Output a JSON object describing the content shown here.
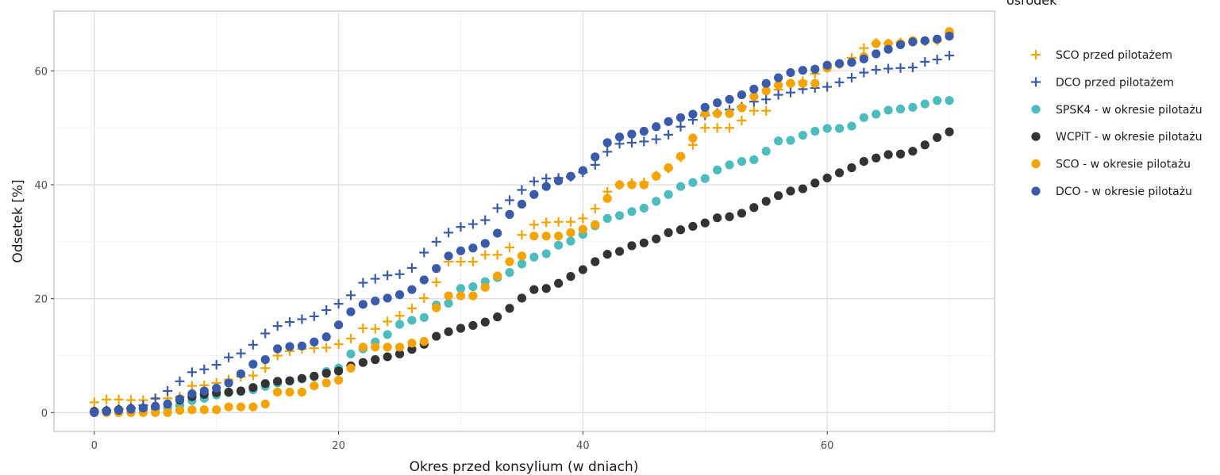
{
  "chart_data": {
    "type": "scatter",
    "title": "",
    "xlabel": "Okres przed konsylium (w dniach)",
    "ylabel": "Odsetek [%]",
    "xlim": [
      -3.3,
      73.7
    ],
    "ylim": [
      -3.3,
      70.5
    ],
    "xticks": [
      0,
      20,
      40,
      60
    ],
    "yticks": [
      0,
      20,
      40,
      60
    ],
    "grid": true,
    "legend": {
      "title": "ośrodek",
      "position": "right"
    },
    "series": [
      {
        "name": "SCO przed pilotażem",
        "marker": "plus",
        "color": "#F5A300",
        "x": [
          0,
          1,
          2,
          3,
          4,
          5,
          6,
          7,
          8,
          9,
          10,
          11,
          12,
          13,
          14,
          15,
          16,
          17,
          18,
          19,
          20,
          21,
          22,
          23,
          24,
          25,
          26,
          27,
          28,
          29,
          30,
          31,
          32,
          33,
          34,
          35,
          36,
          37,
          38,
          39,
          40,
          41,
          42,
          43,
          44,
          45,
          46,
          47,
          48,
          49,
          50,
          51,
          52,
          53,
          54,
          55,
          56,
          57,
          58,
          59,
          60,
          61,
          62,
          63,
          64,
          65,
          66,
          67,
          68,
          69,
          70
        ],
        "y": [
          1.8,
          2.3,
          2.3,
          2.2,
          2.2,
          2.4,
          2.5,
          2.8,
          4.7,
          4.8,
          5.2,
          5.8,
          6.3,
          6.5,
          7.8,
          10.0,
          10.8,
          11.2,
          11.3,
          11.4,
          12.0,
          13.0,
          14.8,
          14.7,
          16.0,
          17.0,
          18.3,
          20.1,
          22.9,
          26.5,
          26.5,
          26.5,
          27.7,
          27.7,
          29.0,
          31.2,
          33.0,
          33.4,
          33.5,
          33.5,
          34.1,
          35.8,
          38.8,
          40.0,
          40.3,
          40.4,
          41.6,
          42.9,
          44.8,
          47.0,
          50.0,
          50.0,
          50.0,
          51.3,
          53.0,
          53.0,
          56.7,
          57.8,
          58.2,
          59.5,
          60.6,
          61.2,
          62.3,
          64.0,
          64.9,
          64.8,
          65.0,
          65.1,
          65.2,
          65.3,
          66.6
        ]
      },
      {
        "name": "DCO przed pilotażem",
        "marker": "plus",
        "color": "#3A5BA9",
        "x": [
          0,
          1,
          2,
          3,
          4,
          5,
          6,
          7,
          8,
          9,
          10,
          11,
          12,
          13,
          14,
          15,
          16,
          17,
          18,
          19,
          20,
          21,
          22,
          23,
          24,
          25,
          26,
          27,
          28,
          29,
          30,
          31,
          32,
          33,
          34,
          35,
          36,
          37,
          38,
          39,
          40,
          41,
          42,
          43,
          44,
          45,
          46,
          47,
          48,
          49,
          50,
          51,
          52,
          53,
          54,
          55,
          56,
          57,
          58,
          59,
          60,
          61,
          62,
          63,
          64,
          65,
          66,
          67,
          68,
          69,
          70
        ],
        "y": [
          0.2,
          0.4,
          0.6,
          0.8,
          1.3,
          2.5,
          3.8,
          5.5,
          7.1,
          7.6,
          8.4,
          9.7,
          10.4,
          11.9,
          13.9,
          15.2,
          15.9,
          16.4,
          16.9,
          18.0,
          19.1,
          20.6,
          22.8,
          23.5,
          24.1,
          24.3,
          25.4,
          28.1,
          30.0,
          31.6,
          32.6,
          33.1,
          33.8,
          35.9,
          37.3,
          39.1,
          40.6,
          41.1,
          41.2,
          41.4,
          42.2,
          43.5,
          45.8,
          47.2,
          47.4,
          47.6,
          48.0,
          48.8,
          50.2,
          51.4,
          52.2,
          52.6,
          53.2,
          53.7,
          54.6,
          55.0,
          55.8,
          56.2,
          56.8,
          57.0,
          57.2,
          58.0,
          58.8,
          59.7,
          60.2,
          60.4,
          60.5,
          60.6,
          61.6,
          62.0,
          62.7
        ]
      },
      {
        "name": "SPSK4 - w okresie pilotażu",
        "marker": "circle",
        "color": "#4DBCBE",
        "x": [
          0,
          1,
          2,
          3,
          4,
          5,
          6,
          7,
          8,
          9,
          10,
          11,
          12,
          13,
          14,
          15,
          16,
          17,
          18,
          19,
          20,
          21,
          22,
          23,
          24,
          25,
          26,
          27,
          28,
          29,
          30,
          31,
          32,
          33,
          34,
          35,
          36,
          37,
          38,
          39,
          40,
          41,
          42,
          43,
          44,
          45,
          46,
          47,
          48,
          49,
          50,
          51,
          52,
          53,
          54,
          55,
          56,
          57,
          58,
          59,
          60,
          61,
          62,
          63,
          64,
          65,
          66,
          67,
          68,
          69,
          70
        ],
        "y": [
          0.0,
          0.1,
          0.2,
          0.3,
          0.4,
          0.5,
          0.8,
          1.3,
          2.1,
          2.5,
          3.1,
          3.5,
          3.7,
          4.0,
          4.6,
          5.2,
          5.5,
          5.9,
          6.3,
          7.2,
          7.8,
          10.3,
          11.2,
          12.4,
          13.7,
          15.5,
          16.2,
          16.7,
          18.9,
          19.2,
          21.8,
          22.1,
          23.0,
          23.7,
          24.6,
          26.1,
          27.3,
          27.9,
          29.4,
          30.1,
          31.3,
          32.8,
          34.1,
          34.6,
          35.3,
          35.9,
          37.1,
          38.3,
          39.7,
          40.4,
          41.1,
          42.6,
          43.5,
          44.1,
          44.4,
          45.9,
          47.7,
          47.8,
          48.7,
          49.4,
          49.9,
          49.9,
          50.3,
          51.8,
          52.4,
          53.1,
          53.3,
          53.6,
          54.2,
          54.8,
          54.8
        ]
      },
      {
        "name": "WCPiT - w okresie pilotażu",
        "marker": "circle",
        "color": "#333333",
        "x": [
          0,
          1,
          2,
          3,
          4,
          5,
          6,
          7,
          8,
          9,
          10,
          11,
          12,
          13,
          14,
          15,
          16,
          17,
          18,
          19,
          20,
          21,
          22,
          23,
          24,
          25,
          26,
          27,
          28,
          29,
          30,
          31,
          32,
          33,
          34,
          35,
          36,
          37,
          38,
          39,
          40,
          41,
          42,
          43,
          44,
          45,
          46,
          47,
          48,
          49,
          50,
          51,
          52,
          53,
          54,
          55,
          56,
          57,
          58,
          59,
          60,
          61,
          62,
          63,
          64,
          65,
          66,
          67,
          68,
          69,
          70
        ],
        "y": [
          0.2,
          0.3,
          0.5,
          0.7,
          0.8,
          1.0,
          1.5,
          2.2,
          2.8,
          3.2,
          3.5,
          3.6,
          3.8,
          4.4,
          5.1,
          5.5,
          5.6,
          6.0,
          6.4,
          6.9,
          7.3,
          8.2,
          8.8,
          9.3,
          9.8,
          10.3,
          11.1,
          12.0,
          13.4,
          14.2,
          14.8,
          15.3,
          15.9,
          16.8,
          18.3,
          20.1,
          21.6,
          21.8,
          22.7,
          23.9,
          25.1,
          26.5,
          27.8,
          28.3,
          29.3,
          29.8,
          30.5,
          31.6,
          32.1,
          32.7,
          33.3,
          34.2,
          34.4,
          35.0,
          36.0,
          37.1,
          38.1,
          38.9,
          39.3,
          40.3,
          41.2,
          42.1,
          43.0,
          44.1,
          44.7,
          45.3,
          45.4,
          45.9,
          47.0,
          48.3,
          49.3
        ]
      },
      {
        "name": "SCO - w okresie pilotażu",
        "marker": "circle",
        "color": "#F5A300",
        "x": [
          0,
          1,
          2,
          3,
          4,
          5,
          6,
          7,
          8,
          9,
          10,
          11,
          12,
          13,
          14,
          15,
          16,
          17,
          18,
          19,
          20,
          21,
          22,
          23,
          24,
          25,
          26,
          27,
          28,
          29,
          30,
          31,
          32,
          33,
          34,
          35,
          36,
          37,
          38,
          39,
          40,
          41,
          42,
          43,
          44,
          45,
          46,
          47,
          48,
          49,
          50,
          51,
          52,
          53,
          54,
          55,
          56,
          57,
          58,
          59,
          60,
          61,
          62,
          63,
          64,
          65,
          66,
          67,
          68,
          69,
          70
        ],
        "y": [
          0.0,
          0.0,
          0.0,
          0.0,
          0.0,
          0.0,
          0.0,
          0.4,
          0.5,
          0.5,
          0.5,
          1.0,
          1.0,
          1.0,
          1.5,
          3.6,
          3.6,
          3.6,
          4.7,
          5.2,
          5.7,
          7.8,
          11.5,
          11.5,
          11.5,
          11.5,
          12.2,
          12.5,
          18.4,
          20.5,
          20.5,
          20.5,
          22.0,
          24.0,
          26.5,
          27.5,
          31.0,
          31.0,
          31.0,
          31.6,
          32.2,
          33.0,
          37.6,
          40.0,
          40.0,
          40.0,
          41.5,
          43.0,
          45.0,
          48.2,
          52.5,
          52.5,
          52.5,
          53.5,
          55.5,
          56.5,
          57.5,
          57.8,
          57.8,
          57.8,
          60.5,
          61.2,
          61.5,
          62.5,
          64.8,
          64.8,
          64.8,
          65.3,
          65.3,
          65.5,
          66.9
        ]
      },
      {
        "name": "DCO - w okresie pilotażu",
        "marker": "circle",
        "color": "#3A5BA9",
        "x": [
          0,
          1,
          2,
          3,
          4,
          5,
          6,
          7,
          8,
          9,
          10,
          11,
          12,
          13,
          14,
          15,
          16,
          17,
          18,
          19,
          20,
          21,
          22,
          23,
          24,
          25,
          26,
          27,
          28,
          29,
          30,
          31,
          32,
          33,
          34,
          35,
          36,
          37,
          38,
          39,
          40,
          41,
          42,
          43,
          44,
          45,
          46,
          47,
          48,
          49,
          50,
          51,
          52,
          53,
          54,
          55,
          56,
          57,
          58,
          59,
          60,
          61,
          62,
          63,
          64,
          65,
          66,
          67,
          68,
          69,
          70
        ],
        "y": [
          0.0,
          0.2,
          0.4,
          0.6,
          0.8,
          1.1,
          1.5,
          2.4,
          3.3,
          3.8,
          4.3,
          5.2,
          6.8,
          8.5,
          9.3,
          11.2,
          11.6,
          11.7,
          12.4,
          13.3,
          15.4,
          17.7,
          19.0,
          19.6,
          20.1,
          20.7,
          21.6,
          23.3,
          25.3,
          27.5,
          28.4,
          28.9,
          29.7,
          31.5,
          34.8,
          36.6,
          38.3,
          39.7,
          40.7,
          41.5,
          42.5,
          44.9,
          47.4,
          48.4,
          48.9,
          49.4,
          50.2,
          51.1,
          51.8,
          52.4,
          53.6,
          54.4,
          55.0,
          55.8,
          56.8,
          57.8,
          58.8,
          59.7,
          60.1,
          60.3,
          61.0,
          61.3,
          61.5,
          62.1,
          63.0,
          63.8,
          64.6,
          65.1,
          65.3,
          65.6,
          66.1
        ]
      }
    ]
  }
}
